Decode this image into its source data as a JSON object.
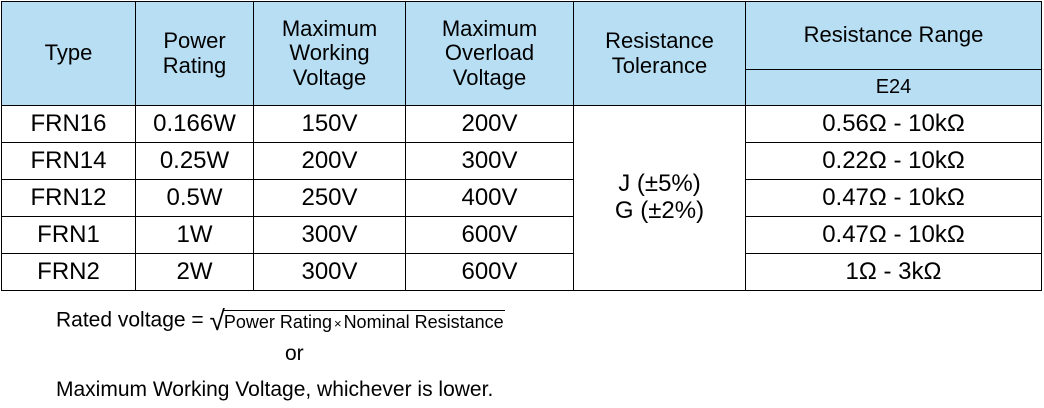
{
  "table": {
    "headers": {
      "type": "Type",
      "power_rating": [
        "Power",
        "Rating"
      ],
      "max_working_voltage": [
        "Maximum",
        "Working",
        "Voltage"
      ],
      "max_overload_voltage": [
        "Maximum",
        "Overload",
        "Voltage"
      ],
      "resistance_tolerance": [
        "Resistance",
        "Tolerance"
      ],
      "resistance_range": "Resistance Range",
      "resistance_range_sub": "E24"
    },
    "rows": [
      {
        "type": "FRN16",
        "power": "0.166W",
        "working": "150V",
        "overload": "200V",
        "range": "0.56Ω - 10kΩ"
      },
      {
        "type": "FRN14",
        "power": "0.25W",
        "working": "200V",
        "overload": "300V",
        "range": "0.22Ω - 10kΩ"
      },
      {
        "type": "FRN12",
        "power": "0.5W",
        "working": "250V",
        "overload": "400V",
        "range": "0.47Ω - 10kΩ"
      },
      {
        "type": "FRN1",
        "power": "1W",
        "working": "300V",
        "overload": "600V",
        "range": "0.47Ω - 10kΩ"
      },
      {
        "type": "FRN2",
        "power": "2W",
        "working": "300V",
        "overload": "600V",
        "range": "1Ω - 3kΩ"
      }
    ],
    "tolerance": [
      "J (±5%)",
      "G (±2%)"
    ]
  },
  "notes": {
    "rated_prefix": "Rated voltage =",
    "sqrt_symbol": "√",
    "radicand_a": "Power Rating",
    "times_symbol": "×",
    "radicand_b": "Nominal Resistance",
    "or": "or",
    "last_line": "Maximum Working Voltage, whichever is lower."
  }
}
